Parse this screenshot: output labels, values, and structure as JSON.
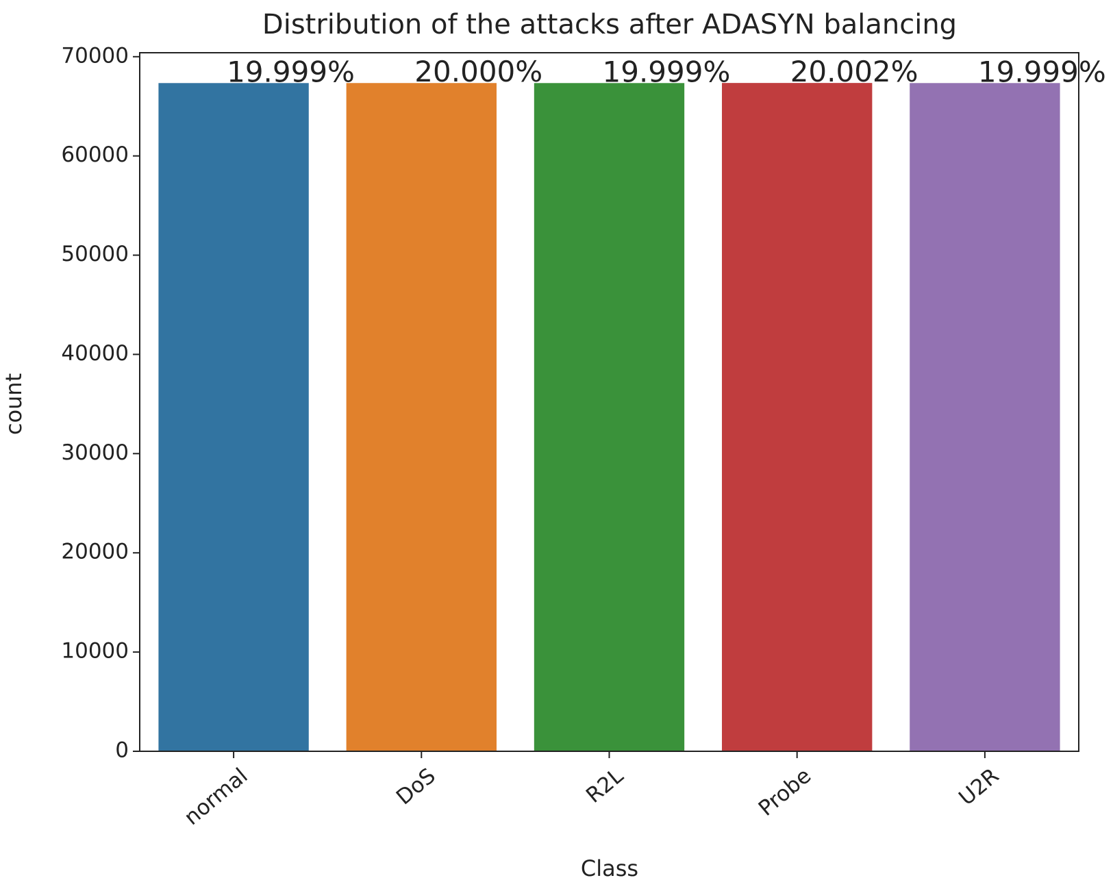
{
  "chart_data": {
    "type": "bar",
    "title": "Distribution of the attacks after ADASYN balancing",
    "x_label": "Class",
    "y_label": "count",
    "categories": [
      "normal",
      "DoS",
      "R2L",
      "Probe",
      "U2R"
    ],
    "values": [
      67343,
      67346,
      67343,
      67353,
      67343
    ],
    "percent_labels": [
      "19.999%",
      "20.000%",
      "19.999%",
      "20.002%",
      "19.999%"
    ],
    "colors": [
      "#3274a1",
      "#e1812c",
      "#3a923a",
      "#c03d3e",
      "#9372b2"
    ],
    "ylim": [
      0,
      70400
    ],
    "yticks": [
      0,
      10000,
      20000,
      30000,
      40000,
      50000,
      60000,
      70000
    ],
    "grid": false
  }
}
